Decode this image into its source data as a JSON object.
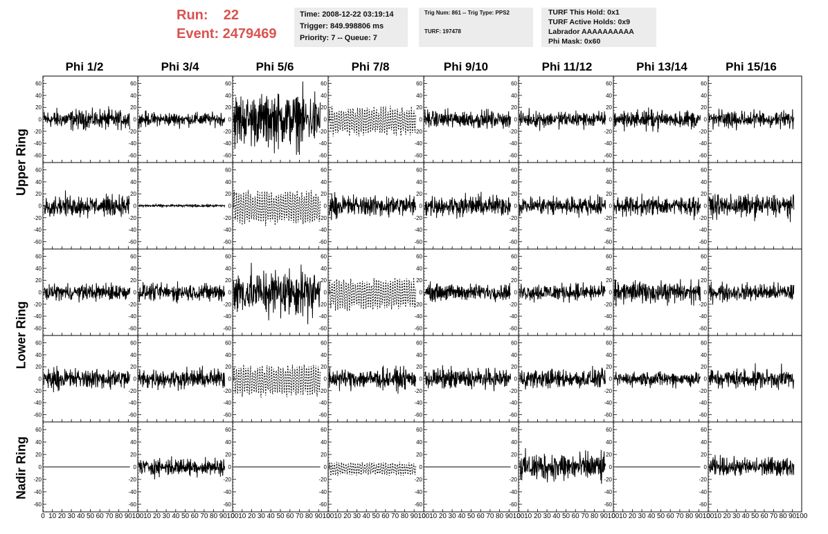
{
  "header": {
    "run_label": "Run:    22",
    "event_label": "Event: 2479469",
    "time_box": [
      "Time: 2008-12-22 03:19:14",
      "Trigger: 849.998806 ms",
      "Priority: 7 -- Queue: 7"
    ],
    "trig_box": [
      "Trig Num: 861 -- Trig Type: PPS2",
      "TURF: 197478"
    ],
    "turf_box": [
      "TURF This Hold: 0x1",
      "TURF Active Holds: 0x9",
      "Labrador AAAAAAAAAA",
      "Phi Mask: 0x60"
    ]
  },
  "columns": [
    "Phi 1/2",
    "Phi 3/4",
    "Phi 5/6",
    "Phi 7/8",
    "Phi 9/10",
    "Phi 11/12",
    "Phi 13/14",
    "Phi 15/16"
  ],
  "rows": [
    "Upper Ring",
    "Lower Ring",
    "Nadir Ring"
  ],
  "colors": {
    "trace": "#000000",
    "accent": "#d9534f",
    "box_bg": "#ececec"
  },
  "chart_data": {
    "type": "line",
    "xlim": [
      0,
      100
    ],
    "ylim": [
      -70,
      70
    ],
    "x_ticks": [
      0,
      10,
      20,
      30,
      40,
      50,
      60,
      70,
      80,
      90,
      100
    ],
    "x_tick_labels": [
      "0",
      "10",
      "20",
      "30",
      "40",
      "50",
      "60",
      "70",
      "80",
      "90",
      "100"
    ],
    "y_ticks": [
      -60,
      -40,
      -20,
      0,
      20,
      40,
      60
    ],
    "y_tick_labels": [
      "-60",
      "-40",
      "-20",
      "0",
      "20",
      "40",
      "60"
    ],
    "panel_rows": [
      [
        "Upper Ring",
        "Upper Ring",
        "Lower Ring",
        "Lower Ring",
        "Nadir Ring"
      ]
    ],
    "panels": [
      [
        {
          "amp": 14,
          "style": "solid"
        },
        {
          "amp": 10,
          "style": "solid"
        },
        {
          "amp": 38,
          "style": "solid"
        },
        {
          "amp": 22,
          "style": "dashed"
        },
        {
          "amp": 13,
          "style": "solid"
        },
        {
          "amp": 12,
          "style": "solid"
        },
        {
          "amp": 13,
          "style": "solid"
        },
        {
          "amp": 13,
          "style": "solid"
        }
      ],
      [
        {
          "amp": 15,
          "style": "solid"
        },
        {
          "amp": 2,
          "style": "solid"
        },
        {
          "amp": 26,
          "style": "dashed"
        },
        {
          "amp": 16,
          "style": "solid"
        },
        {
          "amp": 15,
          "style": "solid"
        },
        {
          "amp": 14,
          "style": "solid"
        },
        {
          "amp": 14,
          "style": "solid"
        },
        {
          "amp": 16,
          "style": "solid"
        }
      ],
      [
        {
          "amp": 12,
          "style": "solid"
        },
        {
          "amp": 13,
          "style": "solid"
        },
        {
          "amp": 35,
          "style": "solid"
        },
        {
          "amp": 24,
          "style": "dashed"
        },
        {
          "amp": 12,
          "style": "solid"
        },
        {
          "amp": 13,
          "style": "solid"
        },
        {
          "amp": 16,
          "style": "solid"
        },
        {
          "amp": 13,
          "style": "solid"
        }
      ],
      [
        {
          "amp": 15,
          "style": "solid"
        },
        {
          "amp": 14,
          "style": "solid"
        },
        {
          "amp": 24,
          "style": "dashed"
        },
        {
          "amp": 15,
          "style": "solid"
        },
        {
          "amp": 15,
          "style": "solid"
        },
        {
          "amp": 14,
          "style": "solid"
        },
        {
          "amp": 11,
          "style": "solid"
        },
        {
          "amp": 15,
          "style": "solid"
        }
      ],
      [
        {
          "amp": 0,
          "style": "solid"
        },
        {
          "amp": 12,
          "style": "solid"
        },
        {
          "amp": 0,
          "style": "solid"
        },
        {
          "amp": 10,
          "style": "dashed"
        },
        {
          "amp": 0,
          "style": "solid"
        },
        {
          "amp": 20,
          "style": "solid"
        },
        {
          "amp": 0,
          "style": "solid"
        },
        {
          "amp": 13,
          "style": "solid"
        }
      ]
    ]
  }
}
